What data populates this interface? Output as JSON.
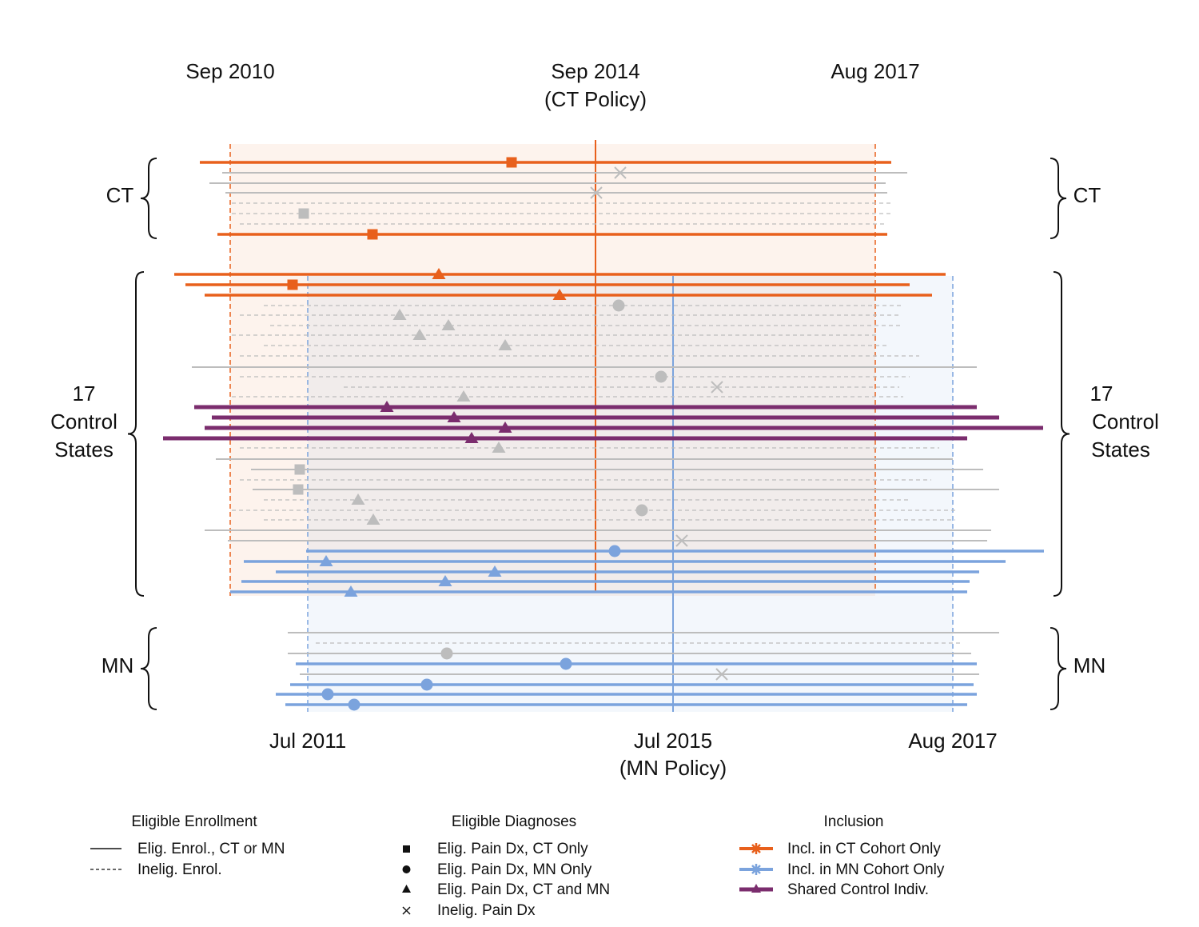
{
  "header": {
    "top_dates": [
      {
        "date": "Sep 2010"
      },
      {
        "date": "Sep 2014",
        "note": "(CT Policy)"
      },
      {
        "date": "Aug 2017"
      }
    ],
    "bottom_dates": [
      {
        "date": "Jul 2011"
      },
      {
        "date": "Jul 2015",
        "note": "(MN Policy)"
      },
      {
        "date": "Aug 2017"
      }
    ]
  },
  "groups": {
    "ct": "CT",
    "control": [
      "17",
      "Control",
      "States"
    ],
    "mn": "MN"
  },
  "legend": {
    "enrollment": {
      "title": "Eligible Enrollment",
      "items": [
        "Elig. Enrol., CT or MN",
        "Inelig. Enrol."
      ]
    },
    "diagnoses": {
      "title": "Eligible Diagnoses",
      "items": [
        "Elig. Pain Dx, CT Only",
        "Elig. Pain Dx, MN Only",
        "Elig. Pain Dx, CT and MN",
        "Inelig. Pain Dx"
      ]
    },
    "inclusion": {
      "title": "Inclusion",
      "items": [
        "Incl. in CT Cohort Only",
        "Incl. in MN Cohort Only",
        "Shared Control Indiv."
      ]
    }
  }
}
